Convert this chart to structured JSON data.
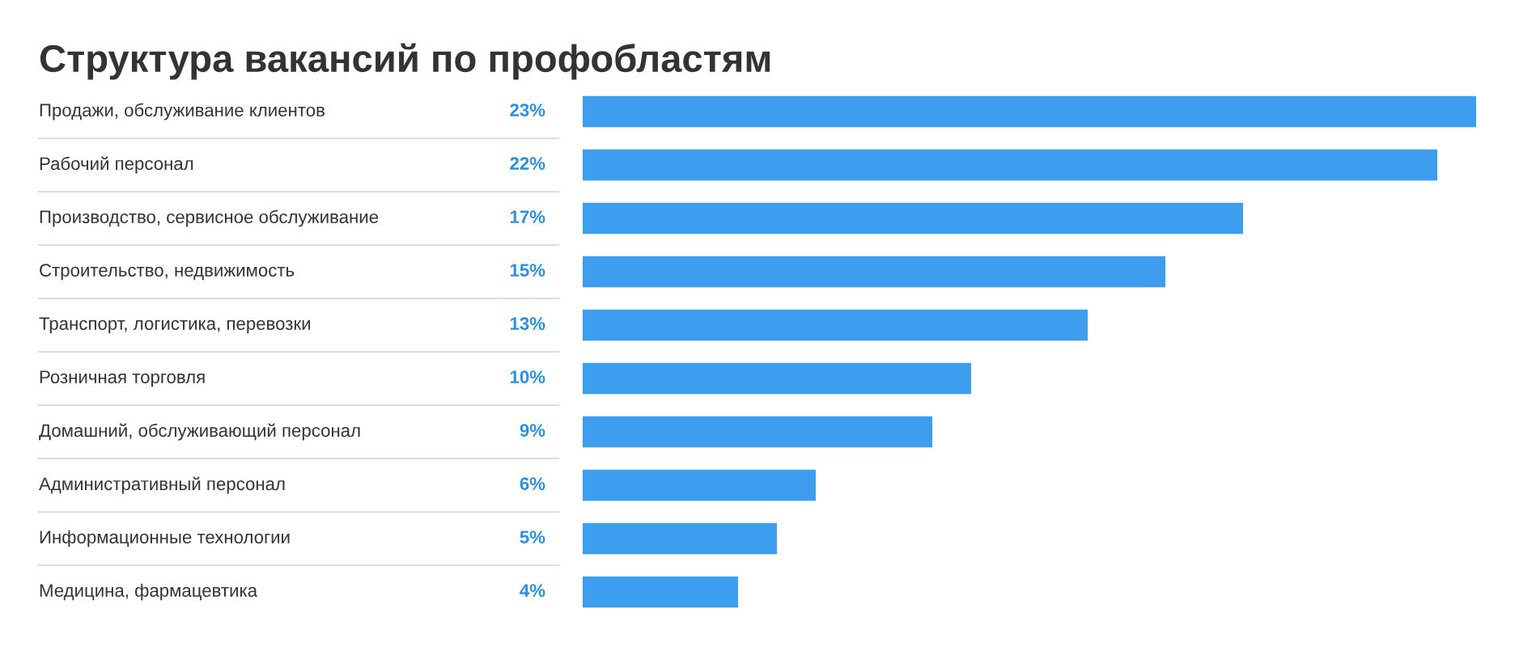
{
  "chart_data": {
    "type": "bar",
    "orientation": "horizontal",
    "title": "Структура вакансий по профобластям",
    "categories": [
      "Продажи, обслуживание клиентов",
      "Рабочий персонал",
      "Производство, сервисное обслуживание",
      "Строительство, недвижимость",
      "Транспорт, логистика, перевозки",
      "Розничная торговля",
      "Домашний, обслуживающий персонал",
      "Административный персонал",
      "Информационные технологии",
      "Медицина, фармацевтика"
    ],
    "values": [
      23,
      22,
      17,
      15,
      13,
      10,
      9,
      6,
      5,
      4
    ],
    "value_labels": [
      "23%",
      "22%",
      "17%",
      "15%",
      "13%",
      "10%",
      "9%",
      "6%",
      "5%",
      "4%"
    ],
    "color": "#3d9ef0",
    "xlim": [
      0,
      23
    ]
  }
}
